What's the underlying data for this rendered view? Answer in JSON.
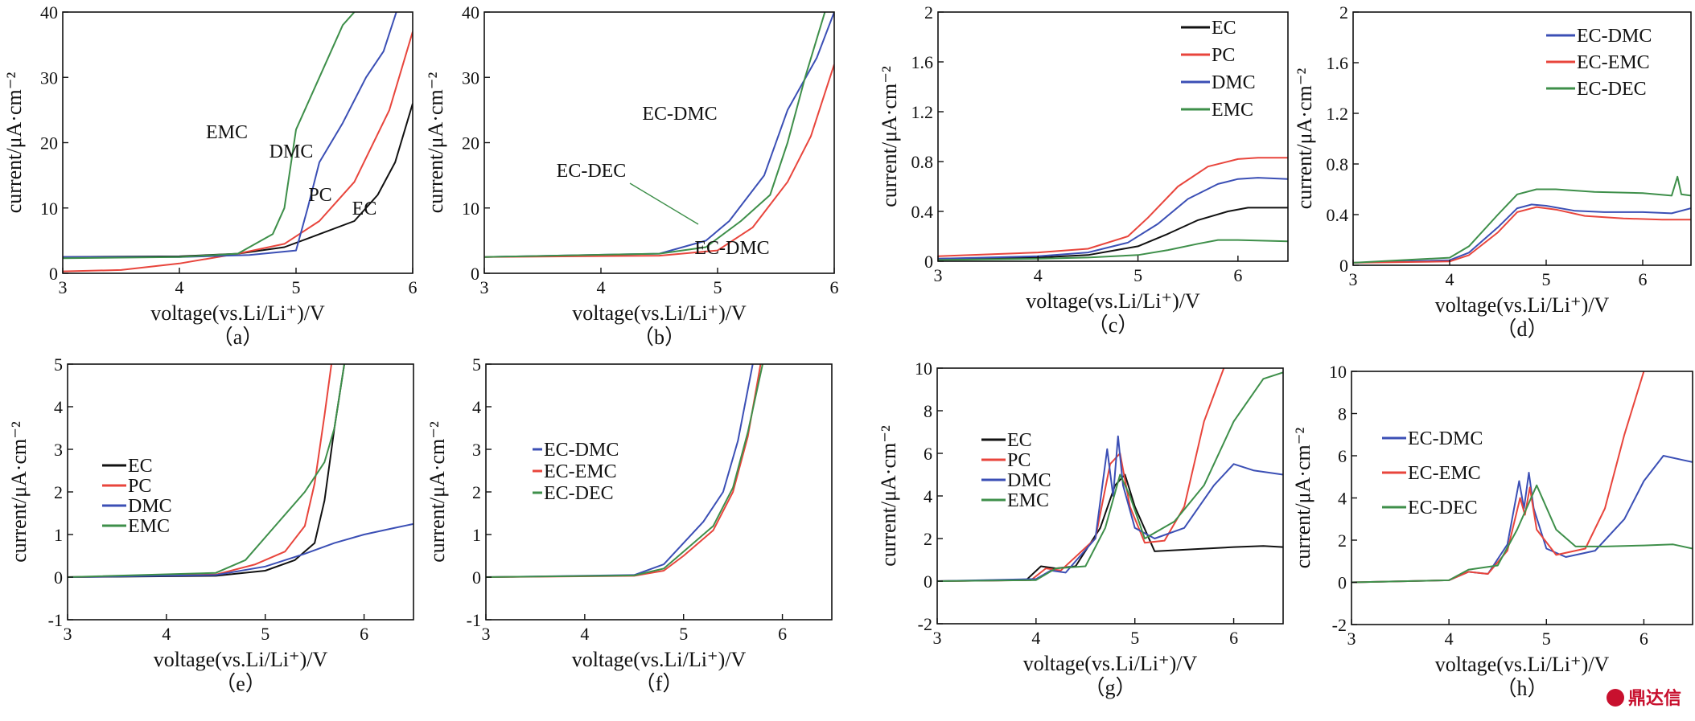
{
  "colors": {
    "EC": "#111111",
    "PC": "#e8453c",
    "DMC": "#3b4fb5",
    "EMC": "#3e8f4a",
    "EC-DMC": "#3b4fb5",
    "EC-EMC": "#e8453c",
    "EC-DEC": "#3e8f4a"
  },
  "watermark": {
    "text": "鼎达信",
    "icon": "circle-logo-icon"
  },
  "chart_data": [
    {
      "id": "a",
      "panel_label": "（a）",
      "type": "line",
      "xlabel": "voltage(vs.Li/Li⁺)/V",
      "ylabel": "current/μA·cm⁻²",
      "xlim": [
        3,
        6
      ],
      "ylim": [
        0,
        40
      ],
      "xticks": [
        3,
        4,
        5,
        6
      ],
      "yticks": [
        0,
        10,
        20,
        30,
        40
      ],
      "legend": null,
      "annotations": [
        {
          "text": "EMC",
          "x": 4.45,
          "y": 20
        },
        {
          "text": "DMC",
          "x": 5.03,
          "y": 17
        },
        {
          "text": "PC",
          "x": 5.22,
          "y": 10.5
        },
        {
          "text": "EC",
          "x": 5.62,
          "y": 8
        }
      ],
      "series": [
        {
          "name": "EC",
          "x": [
            3,
            4,
            4.5,
            4.9,
            5.2,
            5.5,
            5.7,
            5.85,
            6
          ],
          "y": [
            2.5,
            2.6,
            3,
            4,
            6,
            8,
            12,
            17,
            26
          ]
        },
        {
          "name": "PC",
          "x": [
            3,
            3.5,
            4,
            4.5,
            4.9,
            5.2,
            5.5,
            5.8,
            6
          ],
          "y": [
            0.3,
            0.5,
            1.5,
            3,
            4.5,
            8,
            14,
            25,
            37
          ]
        },
        {
          "name": "DMC",
          "x": [
            3,
            4,
            4.6,
            5.0,
            5.1,
            5.2,
            5.4,
            5.6,
            5.75,
            5.86
          ],
          "y": [
            2.5,
            2.5,
            2.8,
            3.5,
            10,
            17,
            23,
            30,
            34,
            40
          ]
        },
        {
          "name": "EMC",
          "x": [
            3,
            4,
            4.5,
            4.8,
            4.9,
            5.0,
            5.2,
            5.4,
            5.5
          ],
          "y": [
            2.3,
            2.5,
            3,
            6,
            10,
            22,
            30,
            38,
            40
          ]
        }
      ]
    },
    {
      "id": "b",
      "panel_label": "（b）",
      "type": "line",
      "xlabel": "voltage(vs.Li/Li⁺)/V",
      "ylabel": "current/μA·cm⁻²",
      "xlim": [
        3,
        6
      ],
      "ylim": [
        0,
        40
      ],
      "xticks": [
        3,
        4,
        5,
        6
      ],
      "yticks": [
        0,
        10,
        20,
        30,
        40
      ],
      "legend": null,
      "annotations": [
        {
          "text": "EC-DMC",
          "x": 5.2,
          "y": 28
        },
        {
          "text": "EC-DEC",
          "x": 4.2,
          "y": 15
        },
        {
          "text": "EC-DMC",
          "x": 5.12,
          "y": 3
        }
      ],
      "series": [
        {
          "name": "EC-DMC",
          "x": [
            3,
            4.5,
            4.9,
            5.1,
            5.4,
            5.6,
            5.85,
            6
          ],
          "y": [
            2.5,
            3,
            5,
            8,
            15,
            25,
            33,
            40
          ]
        },
        {
          "name": "EC-EMC",
          "x": [
            3,
            4.5,
            5.0,
            5.3,
            5.6,
            5.8,
            6
          ],
          "y": [
            2.5,
            2.7,
            3.5,
            7,
            14,
            21,
            32
          ]
        },
        {
          "name": "EC-DEC",
          "x": [
            3,
            4.5,
            4.9,
            5.2,
            5.45,
            5.6,
            5.75,
            5.92
          ],
          "y": [
            2.5,
            3,
            4,
            8,
            12,
            20,
            30,
            40
          ]
        }
      ]
    },
    {
      "id": "c",
      "panel_label": "（c）",
      "type": "line",
      "xlabel": "voltage(vs.Li/Li⁺)/V",
      "ylabel": "current/μA·cm⁻²",
      "xlim": [
        3,
        6.5
      ],
      "ylim": [
        0,
        2
      ],
      "xticks": [
        3,
        4,
        5,
        6
      ],
      "yticks": [
        0,
        0.4,
        0.8,
        1.2,
        1.6,
        2
      ],
      "legend": {
        "position": "top-right",
        "entries": [
          "EC",
          "PC",
          "DMC",
          "EMC"
        ]
      },
      "annotations": [],
      "series": [
        {
          "name": "EC",
          "x": [
            3,
            4,
            4.5,
            5.0,
            5.3,
            5.6,
            5.9,
            6.1,
            6.5
          ],
          "y": [
            0.02,
            0.03,
            0.05,
            0.12,
            0.22,
            0.33,
            0.4,
            0.43,
            0.43
          ]
        },
        {
          "name": "PC",
          "x": [
            3,
            4,
            4.5,
            4.9,
            5.1,
            5.4,
            5.7,
            6.0,
            6.2,
            6.5
          ],
          "y": [
            0.04,
            0.07,
            0.1,
            0.2,
            0.35,
            0.6,
            0.76,
            0.82,
            0.83,
            0.83
          ]
        },
        {
          "name": "DMC",
          "x": [
            3,
            4,
            4.5,
            4.9,
            5.2,
            5.5,
            5.8,
            6.0,
            6.2,
            6.5
          ],
          "y": [
            0.02,
            0.04,
            0.07,
            0.15,
            0.3,
            0.5,
            0.62,
            0.66,
            0.67,
            0.66
          ]
        },
        {
          "name": "EMC",
          "x": [
            3,
            4,
            4.5,
            5.0,
            5.3,
            5.6,
            5.8,
            6.0,
            6.5
          ],
          "y": [
            0.01,
            0.02,
            0.03,
            0.05,
            0.09,
            0.14,
            0.17,
            0.17,
            0.16
          ]
        }
      ]
    },
    {
      "id": "d",
      "panel_label": "（d）",
      "type": "line",
      "xlabel": "voltage(vs.Li/Li⁺)/V",
      "ylabel": "current/μA·cm⁻²",
      "xlim": [
        3,
        6.5
      ],
      "ylim": [
        0,
        2
      ],
      "xticks": [
        3,
        4,
        5,
        6
      ],
      "yticks": [
        0,
        0.4,
        0.8,
        1.2,
        1.6,
        2
      ],
      "legend": {
        "position": "top-right",
        "entries": [
          "EC-DMC",
          "EC-EMC",
          "EC-DEC"
        ]
      },
      "annotations": [],
      "series": [
        {
          "name": "EC-DMC",
          "x": [
            3,
            4,
            4.2,
            4.5,
            4.7,
            4.85,
            5.0,
            5.3,
            5.6,
            6.0,
            6.3,
            6.5
          ],
          "y": [
            0.02,
            0.04,
            0.1,
            0.3,
            0.45,
            0.48,
            0.47,
            0.43,
            0.42,
            0.42,
            0.41,
            0.45
          ]
        },
        {
          "name": "EC-EMC",
          "x": [
            3,
            4,
            4.2,
            4.5,
            4.7,
            4.9,
            5.1,
            5.4,
            5.8,
            6.2,
            6.5
          ],
          "y": [
            0.02,
            0.03,
            0.08,
            0.26,
            0.42,
            0.46,
            0.44,
            0.39,
            0.37,
            0.36,
            0.36
          ]
        },
        {
          "name": "EC-DEC",
          "x": [
            3,
            4,
            4.2,
            4.5,
            4.7,
            4.9,
            5.1,
            5.5,
            6.0,
            6.3,
            6.36,
            6.4,
            6.5
          ],
          "y": [
            0.02,
            0.06,
            0.15,
            0.4,
            0.56,
            0.6,
            0.6,
            0.58,
            0.57,
            0.55,
            0.7,
            0.56,
            0.55
          ]
        }
      ]
    },
    {
      "id": "e",
      "panel_label": "（e）",
      "type": "line",
      "xlabel": "voltage(vs.Li/Li⁺)/V",
      "ylabel": "current/μA·cm⁻²",
      "xlim": [
        3,
        6.5
      ],
      "ylim": [
        -1,
        5
      ],
      "xticks": [
        3,
        4,
        5,
        6
      ],
      "yticks": [
        -1,
        0,
        1,
        2,
        3,
        4,
        5
      ],
      "legend": {
        "position": "center-left",
        "entries": [
          "EC",
          "PC",
          "DMC",
          "EMC"
        ]
      },
      "annotations": [],
      "series": [
        {
          "name": "EC",
          "x": [
            3,
            4.5,
            5.0,
            5.3,
            5.5,
            5.6,
            5.7,
            5.8
          ],
          "y": [
            0,
            0.03,
            0.15,
            0.4,
            0.8,
            1.8,
            3.5,
            5
          ]
        },
        {
          "name": "PC",
          "x": [
            3,
            4.5,
            4.9,
            5.2,
            5.4,
            5.5,
            5.6,
            5.67
          ],
          "y": [
            0,
            0.06,
            0.3,
            0.6,
            1.2,
            2.2,
            3.8,
            5
          ]
        },
        {
          "name": "DMC",
          "x": [
            3,
            4.5,
            5.0,
            5.4,
            5.7,
            6.0,
            6.3,
            6.5
          ],
          "y": [
            0,
            0.05,
            0.25,
            0.55,
            0.8,
            1.0,
            1.15,
            1.25
          ]
        },
        {
          "name": "EMC",
          "x": [
            3,
            4.5,
            4.8,
            5.1,
            5.4,
            5.6,
            5.7,
            5.8
          ],
          "y": [
            0,
            0.1,
            0.4,
            1.2,
            2.0,
            2.7,
            3.5,
            5
          ]
        }
      ]
    },
    {
      "id": "f",
      "panel_label": "（f）",
      "type": "line",
      "xlabel": "voltage(vs.Li/Li⁺)/V",
      "ylabel": "current/μA·cm⁻²",
      "xlim": [
        3,
        6.5
      ],
      "ylim": [
        -1,
        5
      ],
      "xticks": [
        3,
        4,
        5,
        6
      ],
      "yticks": [
        -1,
        0,
        1,
        2,
        3,
        4,
        5
      ],
      "legend": {
        "position": "center-left",
        "entries": [
          "EC-DMC",
          "EC-EMC",
          "EC-DEC"
        ]
      },
      "annotations": [],
      "series": [
        {
          "name": "EC-DMC",
          "x": [
            3,
            4.5,
            4.8,
            5.0,
            5.2,
            5.4,
            5.55,
            5.7
          ],
          "y": [
            0,
            0.05,
            0.3,
            0.8,
            1.3,
            2.0,
            3.2,
            5
          ]
        },
        {
          "name": "EC-EMC",
          "x": [
            3,
            4.5,
            4.8,
            5.0,
            5.3,
            5.5,
            5.65,
            5.78
          ],
          "y": [
            0,
            0.03,
            0.15,
            0.5,
            1.1,
            2.0,
            3.3,
            5
          ]
        },
        {
          "name": "EC-DEC",
          "x": [
            3,
            4.5,
            4.8,
            5.0,
            5.3,
            5.5,
            5.65,
            5.8
          ],
          "y": [
            0,
            0.04,
            0.2,
            0.6,
            1.2,
            2.1,
            3.4,
            5
          ]
        }
      ]
    },
    {
      "id": "g",
      "panel_label": "（g）",
      "type": "line",
      "xlabel": "voltage(vs.Li/Li⁺)/V",
      "ylabel": "current/μA·cm⁻²",
      "xlim": [
        3,
        6.5
      ],
      "ylim": [
        -2,
        10
      ],
      "xticks": [
        3,
        4,
        5,
        6
      ],
      "yticks": [
        -2,
        0,
        2,
        4,
        6,
        8,
        10
      ],
      "legend": {
        "position": "center-left",
        "entries": [
          "EC",
          "PC",
          "DMC",
          "EMC"
        ]
      },
      "annotations": [],
      "series": [
        {
          "name": "EC",
          "x": [
            3,
            3.9,
            4.05,
            4.2,
            4.4,
            4.65,
            4.8,
            4.9,
            5.0,
            5.2,
            5.6,
            6.0,
            6.3,
            6.5
          ],
          "y": [
            0,
            0.05,
            0.7,
            0.6,
            0.7,
            2.5,
            4.5,
            5.0,
            3.5,
            1.4,
            1.5,
            1.6,
            1.65,
            1.6
          ]
        },
        {
          "name": "PC",
          "x": [
            3,
            3.95,
            4.1,
            4.25,
            4.6,
            4.75,
            4.85,
            4.95,
            5.1,
            5.3,
            5.5,
            5.7,
            5.9
          ],
          "y": [
            0,
            0.05,
            0.6,
            0.5,
            2.0,
            5.5,
            6.0,
            3.5,
            1.8,
            1.9,
            3.5,
            7.5,
            10
          ]
        },
        {
          "name": "DMC",
          "x": [
            3,
            4.0,
            4.15,
            4.3,
            4.6,
            4.72,
            4.78,
            4.83,
            4.88,
            5.0,
            5.2,
            5.5,
            5.8,
            6.0,
            6.2,
            6.5
          ],
          "y": [
            0,
            0.1,
            0.5,
            0.4,
            2.0,
            6.2,
            4.0,
            6.8,
            4.5,
            2.5,
            2.0,
            2.5,
            4.5,
            5.5,
            5.2,
            5.0
          ]
        },
        {
          "name": "EMC",
          "x": [
            3,
            4.0,
            4.2,
            4.5,
            4.7,
            4.85,
            4.95,
            5.1,
            5.4,
            5.7,
            6.0,
            6.3,
            6.5
          ],
          "y": [
            0,
            0.05,
            0.6,
            0.7,
            2.5,
            5.0,
            4.0,
            2.0,
            2.8,
            4.5,
            7.5,
            9.5,
            9.8
          ]
        }
      ]
    },
    {
      "id": "h",
      "panel_label": "（h）",
      "type": "line",
      "xlabel": "voltage(vs.Li/Li⁺)/V",
      "ylabel": "current/μA·cm⁻²",
      "xlim": [
        3,
        6.5
      ],
      "ylim": [
        -2,
        10
      ],
      "xticks": [
        3,
        4,
        5,
        6
      ],
      "yticks": [
        -2,
        0,
        2,
        4,
        6,
        8,
        10
      ],
      "legend": {
        "position": "center-left",
        "entries": [
          "EC-DMC",
          "EC-EMC",
          "EC-DEC"
        ]
      },
      "annotations": [],
      "series": [
        {
          "name": "EC-DMC",
          "x": [
            3,
            4.0,
            4.2,
            4.4,
            4.6,
            4.72,
            4.77,
            4.82,
            4.87,
            5.0,
            5.2,
            5.5,
            5.8,
            6.0,
            6.2,
            6.4,
            6.5
          ],
          "y": [
            0,
            0.1,
            0.5,
            0.4,
            1.8,
            4.8,
            3.5,
            5.2,
            3.5,
            1.6,
            1.2,
            1.5,
            3.0,
            4.8,
            6.0,
            5.8,
            5.7
          ]
        },
        {
          "name": "EC-EMC",
          "x": [
            3,
            4.0,
            4.2,
            4.4,
            4.6,
            4.73,
            4.78,
            4.83,
            4.9,
            5.1,
            5.4,
            5.6,
            5.8,
            6.0
          ],
          "y": [
            0,
            0.1,
            0.5,
            0.4,
            1.5,
            4.0,
            3.2,
            4.5,
            2.5,
            1.3,
            1.6,
            3.5,
            7.0,
            10
          ]
        },
        {
          "name": "EC-DEC",
          "x": [
            3,
            4.0,
            4.2,
            4.5,
            4.7,
            4.9,
            5.1,
            5.3,
            5.6,
            6.0,
            6.3,
            6.5
          ],
          "y": [
            0,
            0.1,
            0.6,
            0.8,
            2.5,
            4.6,
            2.5,
            1.7,
            1.7,
            1.75,
            1.8,
            1.6
          ]
        }
      ]
    }
  ]
}
